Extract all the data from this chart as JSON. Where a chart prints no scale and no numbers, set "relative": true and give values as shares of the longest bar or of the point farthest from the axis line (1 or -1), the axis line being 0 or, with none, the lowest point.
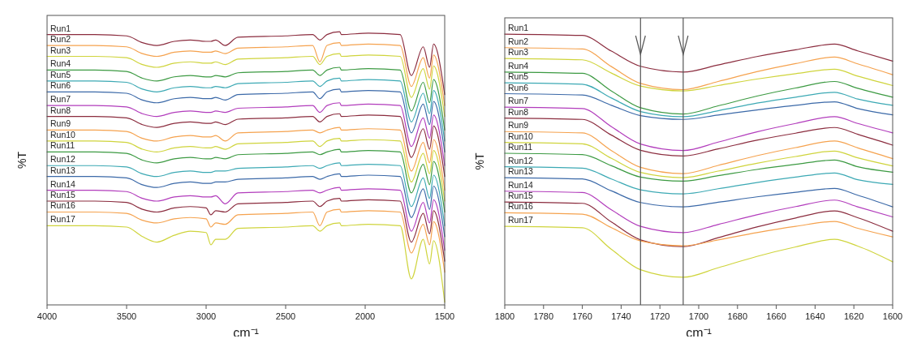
{
  "chart_data": [
    {
      "type": "line",
      "xlabel": "cm⁻¹",
      "ylabel": "%T",
      "relative": true,
      "xlim": [
        4000,
        1500
      ],
      "xticks": [
        4000,
        3500,
        3000,
        2500,
        2000,
        1500
      ],
      "x": [
        4000,
        3700,
        3500,
        3400,
        3310,
        3200,
        3100,
        3000,
        2970,
        2940,
        2880,
        2800,
        2500,
        2330,
        2285,
        2240,
        2160,
        2150,
        1980,
        1780,
        1710,
        1635,
        1595,
        1570,
        1500
      ],
      "series": [
        {
          "name": "Run1",
          "color": "#8b2c3e",
          "values": [
            0.99,
            0.99,
            0.985,
            0.96,
            0.95,
            0.965,
            0.97,
            0.965,
            0.965,
            0.97,
            0.95,
            0.98,
            0.985,
            0.99,
            0.97,
            0.99,
            1,
            0.99,
            0.995,
            0.99,
            0.84,
            0.945,
            0.87,
            0.955,
            0.77
          ]
        },
        {
          "name": "Run2",
          "color": "#f5a24e",
          "values": [
            0.95,
            0.95,
            0.945,
            0.92,
            0.91,
            0.925,
            0.93,
            0.925,
            0.925,
            0.93,
            0.92,
            0.94,
            0.945,
            0.95,
            0.89,
            0.95,
            0.96,
            0.95,
            0.955,
            0.95,
            0.8,
            0.905,
            0.83,
            0.915,
            0.73
          ]
        },
        {
          "name": "Run3",
          "color": "#cfd43c",
          "values": [
            0.91,
            0.91,
            0.905,
            0.88,
            0.87,
            0.885,
            0.89,
            0.885,
            0.885,
            0.89,
            0.88,
            0.9,
            0.905,
            0.91,
            0.88,
            0.91,
            0.92,
            0.91,
            0.915,
            0.91,
            0.76,
            0.865,
            0.79,
            0.875,
            0.69
          ]
        },
        {
          "name": "Run4",
          "color": "#3c9a42",
          "values": [
            0.86,
            0.86,
            0.855,
            0.83,
            0.82,
            0.835,
            0.84,
            0.835,
            0.835,
            0.84,
            0.835,
            0.85,
            0.855,
            0.86,
            0.84,
            0.86,
            0.87,
            0.86,
            0.865,
            0.86,
            0.71,
            0.815,
            0.74,
            0.825,
            0.64
          ]
        },
        {
          "name": "Run5",
          "color": "#3ca9b4",
          "values": [
            0.82,
            0.82,
            0.815,
            0.79,
            0.78,
            0.795,
            0.8,
            0.795,
            0.795,
            0.8,
            0.795,
            0.81,
            0.815,
            0.82,
            0.8,
            0.82,
            0.83,
            0.82,
            0.825,
            0.82,
            0.67,
            0.775,
            0.7,
            0.785,
            0.6
          ]
        },
        {
          "name": "Run6",
          "color": "#3b69a8",
          "values": [
            0.78,
            0.78,
            0.775,
            0.75,
            0.74,
            0.755,
            0.76,
            0.755,
            0.755,
            0.76,
            0.75,
            0.77,
            0.775,
            0.78,
            0.755,
            0.78,
            0.79,
            0.78,
            0.785,
            0.78,
            0.63,
            0.735,
            0.66,
            0.745,
            0.56
          ]
        },
        {
          "name": "Run7",
          "color": "#b23cbc",
          "values": [
            0.73,
            0.73,
            0.725,
            0.7,
            0.69,
            0.705,
            0.71,
            0.705,
            0.705,
            0.71,
            0.705,
            0.72,
            0.725,
            0.73,
            0.705,
            0.73,
            0.74,
            0.73,
            0.735,
            0.73,
            0.58,
            0.685,
            0.61,
            0.695,
            0.51
          ]
        },
        {
          "name": "Run8",
          "color": "#8b2c3e",
          "values": [
            0.69,
            0.69,
            0.685,
            0.66,
            0.65,
            0.665,
            0.67,
            0.665,
            0.665,
            0.67,
            0.66,
            0.68,
            0.685,
            0.69,
            0.67,
            0.69,
            0.7,
            0.69,
            0.695,
            0.69,
            0.54,
            0.645,
            0.57,
            0.655,
            0.47
          ]
        },
        {
          "name": "Run9",
          "color": "#f5a24e",
          "values": [
            0.64,
            0.64,
            0.635,
            0.61,
            0.6,
            0.615,
            0.62,
            0.615,
            0.615,
            0.62,
            0.6,
            0.63,
            0.635,
            0.64,
            0.63,
            0.64,
            0.65,
            0.64,
            0.645,
            0.64,
            0.49,
            0.595,
            0.52,
            0.605,
            0.42
          ]
        },
        {
          "name": "Run10",
          "color": "#cfd43c",
          "values": [
            0.6,
            0.6,
            0.595,
            0.57,
            0.56,
            0.575,
            0.58,
            0.575,
            0.575,
            0.58,
            0.57,
            0.59,
            0.595,
            0.6,
            0.58,
            0.6,
            0.61,
            0.6,
            0.605,
            0.6,
            0.45,
            0.555,
            0.48,
            0.565,
            0.38
          ]
        },
        {
          "name": "Run11",
          "color": "#3c9a42",
          "values": [
            0.56,
            0.56,
            0.555,
            0.53,
            0.52,
            0.535,
            0.54,
            0.535,
            0.535,
            0.54,
            0.535,
            0.55,
            0.555,
            0.56,
            0.55,
            0.56,
            0.57,
            0.56,
            0.565,
            0.56,
            0.41,
            0.515,
            0.44,
            0.525,
            0.34
          ]
        },
        {
          "name": "Run12",
          "color": "#3ca9b4",
          "values": [
            0.51,
            0.51,
            0.505,
            0.48,
            0.47,
            0.485,
            0.49,
            0.485,
            0.485,
            0.49,
            0.49,
            0.5,
            0.505,
            0.51,
            0.5,
            0.51,
            0.52,
            0.51,
            0.515,
            0.51,
            0.36,
            0.465,
            0.39,
            0.475,
            0.29
          ]
        },
        {
          "name": "Run13",
          "color": "#3b69a8",
          "values": [
            0.47,
            0.47,
            0.465,
            0.44,
            0.43,
            0.445,
            0.45,
            0.445,
            0.445,
            0.45,
            0.45,
            0.46,
            0.465,
            0.47,
            0.46,
            0.47,
            0.48,
            0.47,
            0.475,
            0.47,
            0.32,
            0.425,
            0.35,
            0.435,
            0.25
          ]
        },
        {
          "name": "Run14",
          "color": "#b23cbc",
          "values": [
            0.42,
            0.42,
            0.415,
            0.39,
            0.38,
            0.395,
            0.4,
            0.395,
            0.395,
            0.4,
            0.37,
            0.41,
            0.415,
            0.42,
            0.41,
            0.42,
            0.43,
            0.42,
            0.425,
            0.42,
            0.27,
            0.375,
            0.3,
            0.385,
            0.2
          ]
        },
        {
          "name": "Run15",
          "color": "#8b2c3e",
          "values": [
            0.38,
            0.38,
            0.375,
            0.35,
            0.34,
            0.355,
            0.36,
            0.355,
            0.33,
            0.345,
            0.34,
            0.37,
            0.375,
            0.38,
            0.36,
            0.38,
            0.39,
            0.38,
            0.385,
            0.38,
            0.23,
            0.335,
            0.26,
            0.345,
            0.16
          ]
        },
        {
          "name": "Run16",
          "color": "#f5a24e",
          "values": [
            0.34,
            0.34,
            0.335,
            0.31,
            0.3,
            0.315,
            0.32,
            0.315,
            0.285,
            0.3,
            0.295,
            0.33,
            0.335,
            0.34,
            0.29,
            0.34,
            0.35,
            0.34,
            0.345,
            0.34,
            0.19,
            0.295,
            0.22,
            0.305,
            0.12
          ]
        },
        {
          "name": "Run17",
          "color": "#cfd43c",
          "values": [
            0.29,
            0.29,
            0.285,
            0.25,
            0.23,
            0.255,
            0.27,
            0.265,
            0.22,
            0.24,
            0.24,
            0.28,
            0.285,
            0.29,
            0.27,
            0.29,
            0.3,
            0.29,
            0.295,
            0.29,
            0.095,
            0.24,
            0.15,
            0.235,
            0.01
          ]
        }
      ]
    },
    {
      "type": "line",
      "xlabel": "cm⁻¹",
      "ylabel": "%T",
      "relative": true,
      "xlim": [
        1800,
        1600
      ],
      "xticks": [
        1800,
        1780,
        1760,
        1740,
        1720,
        1700,
        1680,
        1660,
        1640,
        1620,
        1600
      ],
      "x": [
        1800,
        1760,
        1745,
        1730,
        1708,
        1690,
        1670,
        1650,
        1630,
        1618,
        1600
      ],
      "ref_lines": [
        {
          "axis": "x",
          "value": 1730,
          "color": "#555555"
        },
        {
          "axis": "x",
          "value": 1708,
          "color": "#555555"
        }
      ],
      "series": [
        {
          "name": "Run1",
          "color": "#8b2c3e",
          "values": [
            1,
            0.995,
            0.937,
            0.881,
            0.86,
            0.886,
            0.917,
            0.942,
            0.963,
            0.938,
            0.9
          ]
        },
        {
          "name": "Run2",
          "color": "#f5a24e",
          "values": [
            0.95,
            0.945,
            0.88,
            0.818,
            0.795,
            0.825,
            0.861,
            0.891,
            0.915,
            0.89,
            0.85
          ]
        },
        {
          "name": "Run3",
          "color": "#cfd43c",
          "values": [
            0.91,
            0.905,
            0.856,
            0.808,
            0.79,
            0.81,
            0.834,
            0.854,
            0.87,
            0.845,
            0.81
          ]
        },
        {
          "name": "Run4",
          "color": "#3c9a42",
          "values": [
            0.86,
            0.855,
            0.79,
            0.728,
            0.705,
            0.735,
            0.771,
            0.801,
            0.825,
            0.8,
            0.767
          ]
        },
        {
          "name": "Run5",
          "color": "#3ca9b4",
          "values": [
            0.82,
            0.815,
            0.764,
            0.714,
            0.695,
            0.717,
            0.745,
            0.767,
            0.785,
            0.76,
            0.737
          ]
        },
        {
          "name": "Run6",
          "color": "#3b69a8",
          "values": [
            0.78,
            0.775,
            0.737,
            0.699,
            0.685,
            0.701,
            0.72,
            0.737,
            0.75,
            0.725,
            0.702
          ]
        },
        {
          "name": "Run7",
          "color": "#b23cbc",
          "values": [
            0.73,
            0.725,
            0.658,
            0.594,
            0.57,
            0.601,
            0.639,
            0.67,
            0.695,
            0.67,
            0.635
          ]
        },
        {
          "name": "Run8",
          "color": "#8b2c3e",
          "values": [
            0.69,
            0.685,
            0.627,
            0.571,
            0.55,
            0.576,
            0.608,
            0.634,
            0.655,
            0.63,
            0.59
          ]
        },
        {
          "name": "Run9",
          "color": "#f5a24e",
          "values": [
            0.64,
            0.635,
            0.57,
            0.508,
            0.485,
            0.515,
            0.551,
            0.581,
            0.605,
            0.58,
            0.54
          ]
        },
        {
          "name": "Run10",
          "color": "#cfd43c",
          "values": [
            0.6,
            0.595,
            0.541,
            0.489,
            0.47,
            0.494,
            0.523,
            0.548,
            0.568,
            0.543,
            0.513
          ]
        },
        {
          "name": "Run11",
          "color": "#3c9a42",
          "values": [
            0.56,
            0.555,
            0.514,
            0.472,
            0.457,
            0.477,
            0.5,
            0.519,
            0.535,
            0.51,
            0.49
          ]
        },
        {
          "name": "Run12",
          "color": "#3ca9b4",
          "values": [
            0.51,
            0.505,
            0.465,
            0.425,
            0.41,
            0.429,
            0.452,
            0.472,
            0.487,
            0.462,
            0.445
          ]
        },
        {
          "name": "Run13",
          "color": "#3b69a8",
          "values": [
            0.47,
            0.465,
            0.421,
            0.378,
            0.362,
            0.379,
            0.399,
            0.416,
            0.43,
            0.405,
            0.362
          ]
        },
        {
          "name": "Run14",
          "color": "#b23cbc",
          "values": [
            0.42,
            0.415,
            0.351,
            0.29,
            0.267,
            0.297,
            0.333,
            0.363,
            0.387,
            0.362,
            0.325
          ]
        },
        {
          "name": "Run15",
          "color": "#8b2c3e",
          "values": [
            0.38,
            0.375,
            0.306,
            0.24,
            0.215,
            0.248,
            0.288,
            0.321,
            0.347,
            0.322,
            0.272
          ]
        },
        {
          "name": "Run16",
          "color": "#f5a24e",
          "values": [
            0.34,
            0.335,
            0.285,
            0.236,
            0.218,
            0.24,
            0.267,
            0.29,
            0.308,
            0.283,
            0.251
          ]
        },
        {
          "name": "Run17",
          "color": "#cfd43c",
          "values": [
            0.29,
            0.285,
            0.205,
            0.13,
            0.102,
            0.137,
            0.179,
            0.214,
            0.242,
            0.217,
            0.159
          ]
        }
      ]
    }
  ]
}
